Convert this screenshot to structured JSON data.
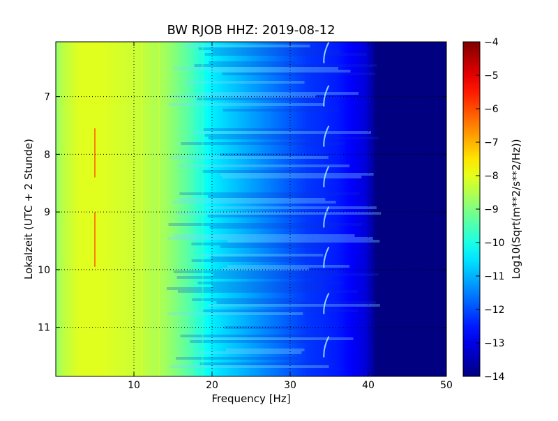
{
  "chart_data": {
    "type": "heatmap",
    "title": "BW RJOB HHZ: 2019-08-12",
    "xlabel": "Frequency [Hz]",
    "ylabel": "Lokalzeit (UTC + 2 Stunde)",
    "xlim": [
      0,
      50
    ],
    "ylim": [
      6.05,
      11.85
    ],
    "x_ticks": [
      10,
      20,
      30,
      40,
      50
    ],
    "y_ticks": [
      7,
      8,
      9,
      10,
      11
    ],
    "y_inverted": true,
    "grid": true,
    "colormap": "jet",
    "colorbar": {
      "label": "Log10(Sqrt(m**2/s**2/Hz))",
      "range": [
        -14,
        -4
      ],
      "ticks": [
        -14,
        -13,
        -12,
        -11,
        -10,
        -9,
        -8,
        -7,
        -6,
        -5,
        -4
      ]
    },
    "value_profile": {
      "frequency_hz": [
        0,
        1,
        3,
        6,
        10,
        14,
        17,
        20,
        24,
        28,
        32,
        36,
        38,
        40,
        41,
        50
      ],
      "log_psd": [
        -8.8,
        -8.4,
        -8.05,
        -8.05,
        -8.25,
        -8.65,
        -9.4,
        -10.4,
        -11.0,
        -11.6,
        -12.2,
        -12.5,
        -12.8,
        -13.2,
        -14,
        -14
      ]
    },
    "annotations": {
      "narrowband_line_hz": 5,
      "narrowband_segments": [
        [
          7.55,
          8.4
        ],
        [
          9.0,
          9.95
        ]
      ],
      "vertical_lines_hz": [
        11,
        13.2,
        18.8
      ],
      "hook_features": {
        "frequency_hz": 34.5,
        "hours": [
          6.25,
          7.0,
          7.7,
          8.4,
          9.1,
          9.8,
          10.6,
          11.35
        ]
      }
    }
  }
}
